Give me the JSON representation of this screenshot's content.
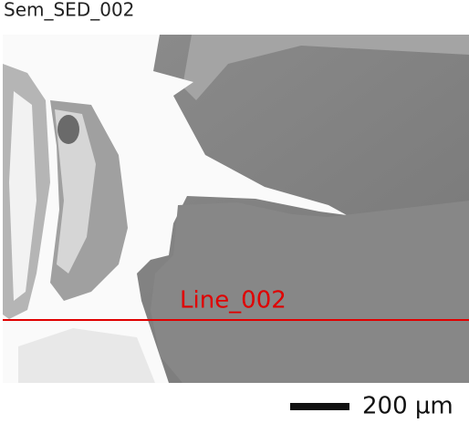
{
  "header": {
    "title": "Sem_SED_002"
  },
  "image": {
    "line_label": "Line_002"
  },
  "scale_bar": {
    "label": "200 µm"
  }
}
